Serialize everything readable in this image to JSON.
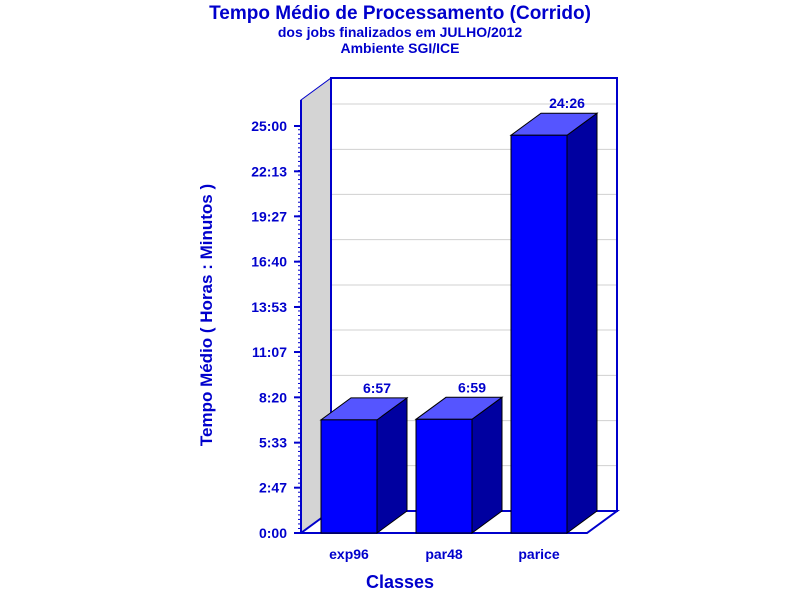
{
  "chart_data": {
    "type": "bar",
    "title": "Tempo Médio de Processamento (Corrido)",
    "subtitle": [
      "dos jobs finalizados em JULHO/2012",
      "Ambiente SGI/ICE"
    ],
    "xlabel": "Classes",
    "ylabel": "Tempo Médio ( Horas : Minutos )",
    "categories": [
      "exp96",
      "par48",
      "parice"
    ],
    "values_minutes": [
      417,
      419,
      1466
    ],
    "value_labels": [
      "6:57",
      "6:59",
      "24:26"
    ],
    "y_ticks_minutes": [
      0,
      167,
      333,
      500,
      667,
      833,
      1000,
      1167,
      1333,
      1500
    ],
    "y_tick_labels": [
      "0:00",
      "2:47",
      "5:33",
      "8:20",
      "11:07",
      "13:53",
      "16:40",
      "19:27",
      "22:13",
      "25:00"
    ],
    "ylim_minutes": [
      0,
      1500
    ],
    "grid": true,
    "style": "3d"
  },
  "colors": {
    "text": "#0000cc",
    "bar_front": "#0000ff",
    "bar_top": "#5555ff",
    "bar_side": "#0000a0",
    "side_wall": "#d4d4d4",
    "gridline": "#d0d0d0",
    "frame": "#0000cc"
  }
}
